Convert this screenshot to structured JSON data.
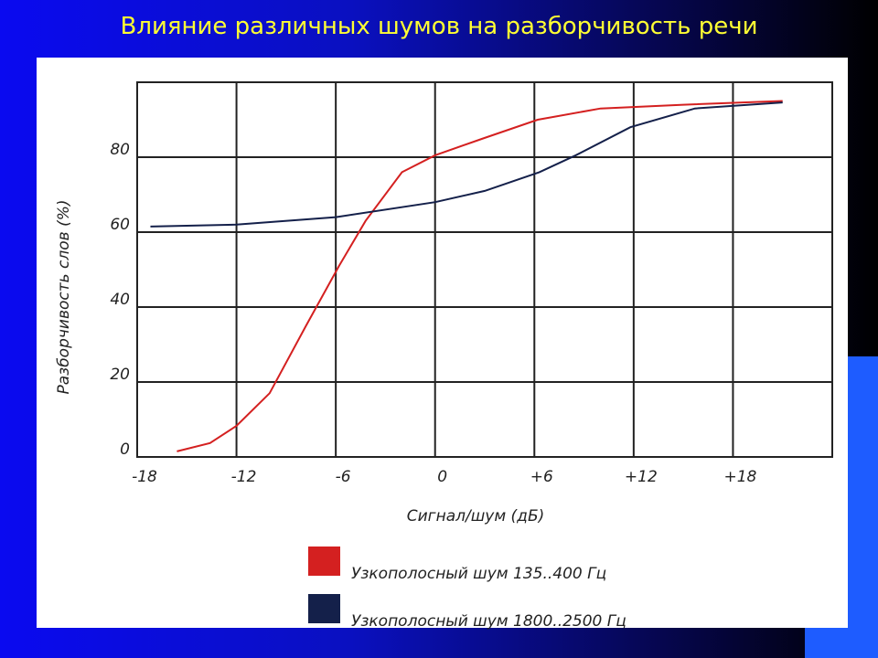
{
  "slide_title": "Влияние различных шумов на разборчивость речи",
  "chart_data": {
    "type": "line",
    "x_label": "Сигнал/шум (дБ)",
    "y_label": "Разборчивость слов (%)",
    "xlim": [
      -18,
      24
    ],
    "xticks": [
      -18,
      -12,
      -6,
      0,
      {
        "value": 6,
        "label": "+6"
      },
      {
        "value": 12,
        "label": "+12"
      },
      {
        "value": 18,
        "label": "+18"
      }
    ],
    "ylim": [
      0,
      100
    ],
    "yticks": [
      0,
      20,
      40,
      60,
      80
    ],
    "grid": true,
    "series": [
      {
        "name": "Узкополосный шум 135..400 Гц",
        "color": "#d42020",
        "x": [
          -15.6,
          -13.6,
          -12,
          -10,
          -7.8,
          -5.8,
          -4.2,
          -2,
          0,
          2.9,
          6.2,
          10,
          15,
          21
        ],
        "values": [
          1.5,
          3.7,
          8.3,
          17,
          35,
          51,
          63,
          76,
          80.5,
          85,
          90,
          93,
          94,
          95
        ]
      },
      {
        "name": "Узкополосный шум 1800..2500 Гц",
        "color": "#14204a",
        "x": [
          -17.2,
          -12,
          -6,
          0,
          3,
          6.3,
          8.5,
          11.8,
          15.7,
          21
        ],
        "values": [
          61.5,
          62,
          64,
          68,
          71,
          76,
          80.5,
          88,
          93,
          94.6
        ]
      }
    ]
  }
}
